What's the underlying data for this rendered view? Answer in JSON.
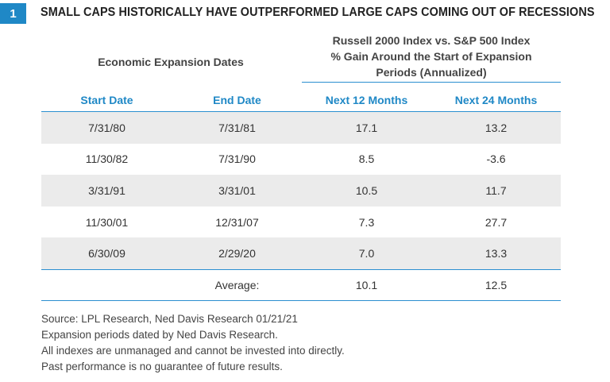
{
  "badge": "1",
  "title": "SMALL CAPS HISTORICALLY HAVE OUTPERFORMED LARGE CAPS COMING OUT OF RECESSIONS",
  "left_header": "Economic Expansion Dates",
  "right_header": {
    "line1": "Russell 2000 Index vs. S&P 500 Index",
    "line2": "% Gain Around the Start of Expansion",
    "line3": "Periods (Annualized)"
  },
  "columns": [
    "Start Date",
    "End Date",
    "Next 12 Months",
    "Next 24 Months"
  ],
  "rows": [
    [
      "7/31/80",
      "7/31/81",
      "17.1",
      "13.2"
    ],
    [
      "11/30/82",
      "7/31/90",
      "8.5",
      "-3.6"
    ],
    [
      "3/31/91",
      "3/31/01",
      "10.5",
      "11.7"
    ],
    [
      "11/30/01",
      "12/31/07",
      "7.3",
      "27.7"
    ],
    [
      "6/30/09",
      "2/29/20",
      "7.0",
      "13.3"
    ]
  ],
  "average": {
    "label": "Average:",
    "next12": "10.1",
    "next24": "12.5"
  },
  "notes": [
    "Source: LPL Research, Ned Davis Research  01/21/21",
    "Expansion periods dated by Ned Davis Research.",
    "All indexes are unmanaged and cannot be invested into directly.",
    "Past performance is no guarantee of future results."
  ]
}
